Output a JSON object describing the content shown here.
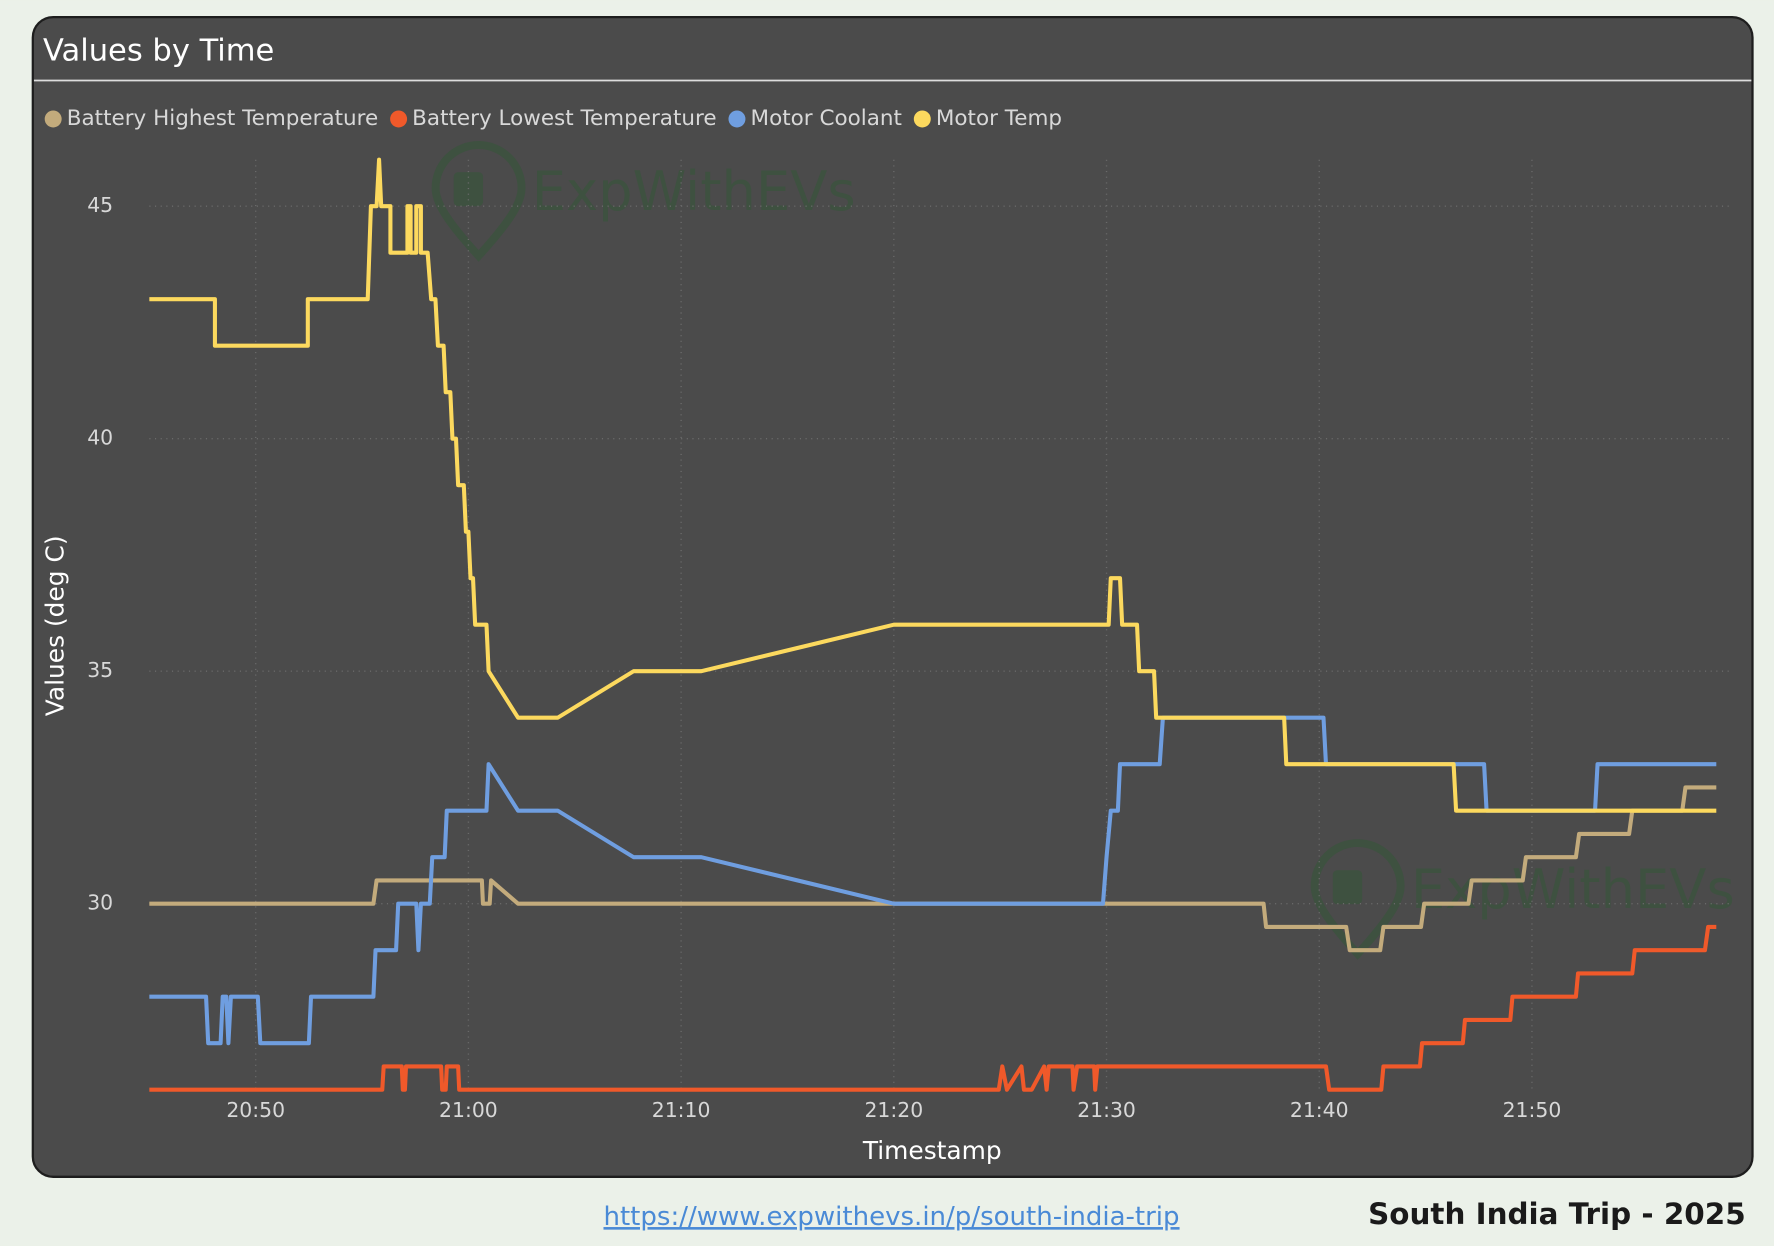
{
  "chart_data": {
    "type": "line",
    "title": "Values by Time",
    "xlabel": "Timestamp",
    "ylabel": "Values (deg C)",
    "watermark": "ExpWithEVs",
    "xlim": [
      "20:45:00",
      "21:58:40"
    ],
    "xticks": [
      "20:50",
      "21:00",
      "21:10",
      "21:20",
      "21:30",
      "21:40",
      "21:50"
    ],
    "ylim": [
      26,
      46
    ],
    "yticks": [
      30,
      35,
      40,
      45
    ],
    "grid": true,
    "legend": "top-left",
    "series": [
      {
        "name": "Battery Highest Temperature",
        "color": "#c3ab7c",
        "x": [
          "20:45:00",
          "20:55:32",
          "20:55:41",
          "21:00:38",
          "21:00:41",
          "21:01:00",
          "21:01:04",
          "21:02:20",
          "21:37:23",
          "21:37:30",
          "21:41:16",
          "21:41:26",
          "21:42:52",
          "21:43:01",
          "21:44:47",
          "21:44:56",
          "21:47:01",
          "21:47:10",
          "21:49:34",
          "21:49:43",
          "21:52:04",
          "21:52:13",
          "21:54:34",
          "21:54:43",
          "21:57:04",
          "21:57:13",
          "21:58:40"
        ],
        "values": [
          30,
          30,
          30.5,
          30.5,
          30,
          30,
          30.5,
          30,
          30,
          29.5,
          29.5,
          29,
          29,
          29.5,
          29.5,
          30,
          30,
          30.5,
          30.5,
          31,
          31,
          31.5,
          31.5,
          32,
          32,
          32.5,
          32.5
        ]
      },
      {
        "name": "Battery Lowest Temperature",
        "color": "#f0592a",
        "x": [
          "20:45:00",
          "20:55:57",
          "20:56:01",
          "20:56:52",
          "20:56:55",
          "20:57:01",
          "20:57:04",
          "20:58:43",
          "20:58:46",
          "20:58:56",
          "20:58:59",
          "20:59:31",
          "20:59:34",
          "21:24:56",
          "21:25:06",
          "21:25:19",
          "21:26:00",
          "21:26:07",
          "21:26:29",
          "21:27:04",
          "21:27:11",
          "21:27:17",
          "21:28:24",
          "21:28:27",
          "21:28:37",
          "21:29:25",
          "21:29:28",
          "21:29:34",
          "21:40:19",
          "21:40:28",
          "21:42:55",
          "21:43:01",
          "21:44:44",
          "21:44:50",
          "21:46:45",
          "21:46:51",
          "21:48:59",
          "21:49:05",
          "21:52:04",
          "21:52:10",
          "21:54:43",
          "21:54:50",
          "21:58:08",
          "21:58:17",
          "21:58:40"
        ],
        "values": [
          26,
          26,
          26.5,
          26.5,
          26,
          26,
          26.5,
          26.5,
          26,
          26,
          26.5,
          26.5,
          26,
          26,
          26.5,
          26,
          26.5,
          26,
          26,
          26.5,
          26,
          26.5,
          26.5,
          26,
          26.5,
          26.5,
          26,
          26.5,
          26.5,
          26,
          26,
          26.5,
          26.5,
          27,
          27,
          27.5,
          27.5,
          28,
          28,
          28.5,
          28.5,
          29,
          29,
          29.5,
          29.5
        ]
      },
      {
        "name": "Motor Coolant",
        "color": "#6f9ee0",
        "x": [
          "20:45:00",
          "20:47:40",
          "20:47:46",
          "20:48:21",
          "20:48:27",
          "20:48:37",
          "20:48:43",
          "20:48:50",
          "20:50:06",
          "20:50:13",
          "20:52:30",
          "20:52:36",
          "20:55:32",
          "20:55:38",
          "20:56:36",
          "20:56:42",
          "20:57:33",
          "20:57:39",
          "20:57:46",
          "20:58:11",
          "20:58:18",
          "20:58:53",
          "20:58:59",
          "21:00:51",
          "21:00:57",
          "21:02:20",
          "21:04:12",
          "21:07:46",
          "21:10:57",
          "21:20:00",
          "21:29:50",
          "21:30:00",
          "21:30:12",
          "21:30:32",
          "21:30:38",
          "21:32:30",
          "21:32:39",
          "21:40:12",
          "21:40:19",
          "21:47:45",
          "21:47:52",
          "21:52:58",
          "21:53:05",
          "21:58:40"
        ],
        "values": [
          28,
          28,
          27,
          27,
          28,
          28,
          27,
          28,
          28,
          27,
          27,
          28,
          28,
          29,
          29,
          30,
          30,
          29,
          30,
          30,
          31,
          31,
          32,
          32,
          33,
          32,
          32,
          31,
          31,
          30,
          30,
          31,
          32,
          32,
          33,
          33,
          34,
          34,
          33,
          33,
          32,
          32,
          33,
          33
        ]
      },
      {
        "name": "Motor Temp",
        "color": "#fcd95e",
        "x": [
          "20:45:00",
          "20:48:05",
          "20:48:05",
          "20:52:27",
          "20:52:27",
          "20:55:16",
          "20:55:25",
          "20:55:41",
          "20:55:48",
          "20:55:54",
          "20:56:20",
          "20:56:20",
          "20:57:08",
          "20:57:08",
          "20:57:17",
          "20:57:17",
          "20:57:33",
          "20:57:33",
          "20:57:46",
          "20:57:46",
          "20:58:05",
          "20:58:15",
          "20:58:27",
          "20:58:34",
          "20:58:50",
          "20:58:56",
          "20:59:09",
          "20:59:15",
          "20:59:25",
          "20:59:31",
          "20:59:47",
          "20:59:53",
          "21:00:00",
          "21:00:06",
          "21:00:13",
          "21:00:19",
          "21:00:51",
          "21:00:57",
          "21:02:20",
          "21:04:12",
          "21:07:46",
          "21:10:57",
          "21:20:00",
          "21:30:06",
          "21:30:12",
          "21:30:38",
          "21:30:44",
          "21:31:26",
          "21:31:32",
          "21:32:14",
          "21:32:20",
          "21:38:21",
          "21:38:27",
          "21:46:19",
          "21:46:26",
          "21:58:40"
        ],
        "values": [
          43,
          43,
          42,
          42,
          43,
          43,
          45,
          45,
          46,
          45,
          45,
          44,
          44,
          45,
          45,
          44,
          44,
          45,
          45,
          44,
          44,
          43,
          43,
          42,
          42,
          41,
          41,
          40,
          40,
          39,
          39,
          38,
          38,
          37,
          37,
          36,
          36,
          35,
          34,
          34,
          35,
          35,
          36,
          36,
          37,
          37,
          36,
          36,
          35,
          35,
          34,
          34,
          33,
          33,
          32,
          32
        ]
      }
    ]
  },
  "footer": {
    "link": "https://www.expwithevs.in/p/south-india-trip",
    "caption": "South India Trip - 2025"
  }
}
